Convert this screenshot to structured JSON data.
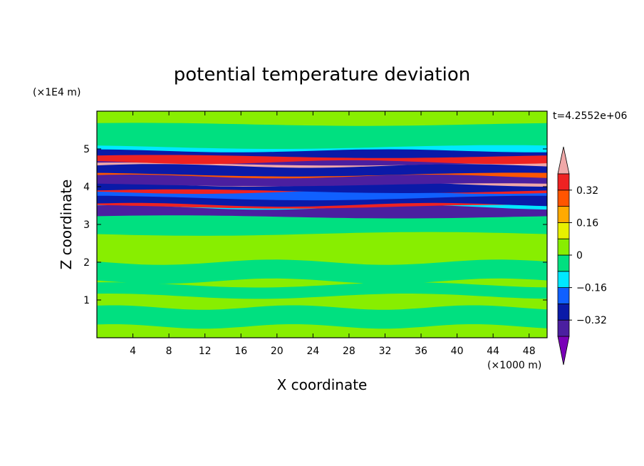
{
  "chart_data": {
    "type": "heatmap",
    "title": "potential temperature deviation",
    "xlabel": "X coordinate",
    "ylabel": "Z coordinate",
    "x_unit": "(×1000 m)",
    "y_unit": "(×1E4 m)",
    "time_label": "t=4.2552e+06",
    "xlim": [
      0,
      50
    ],
    "ylim": [
      0,
      6
    ],
    "x_ticks": [
      4,
      8,
      12,
      16,
      20,
      24,
      28,
      32,
      36,
      40,
      44,
      48
    ],
    "y_ticks": [
      1,
      2,
      3,
      4,
      5
    ],
    "colorbar": {
      "levels": [
        -0.48,
        -0.4,
        -0.32,
        -0.24,
        -0.16,
        -0.08,
        0,
        0.08,
        0.16,
        0.24,
        0.32,
        0.4,
        0.48
      ],
      "tick_values": [
        0.32,
        0.16,
        0,
        -0.16,
        -0.32
      ],
      "tick_labels": [
        "0.32",
        "0.16",
        "0",
        "−0.16",
        "−0.32"
      ],
      "colors": [
        "#7a00b8",
        "#4b1fa0",
        "#0a1aa8",
        "#1060ff",
        "#00e8ff",
        "#00e080",
        "#88ee00",
        "#e8f000",
        "#ffaa00",
        "#ff5500",
        "#ee2222",
        "#f0a8a8"
      ]
    },
    "background_color": "#88ee00"
  }
}
